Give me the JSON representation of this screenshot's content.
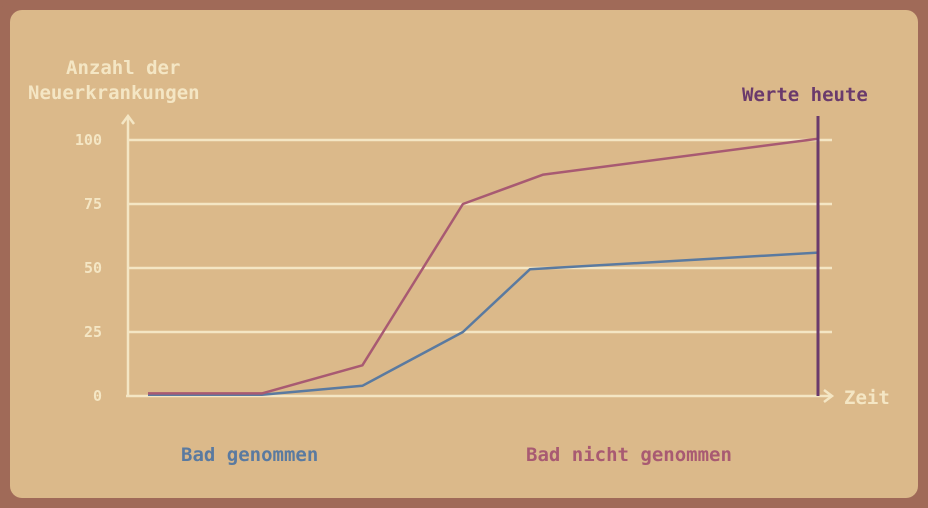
{
  "chart_data": {
    "type": "line",
    "ylabel": [
      "Anzahl der",
      "Neuerkrankungen"
    ],
    "xlabel": "Zeit",
    "yticks": [
      0,
      25,
      50,
      75,
      100
    ],
    "ylim": [
      0,
      100
    ],
    "xlim": [
      0,
      100
    ],
    "grid": true,
    "marker_label": "Werte heute",
    "marker_x": 100,
    "series": [
      {
        "name": "Bad genommen",
        "color": "#5a7aa0",
        "points": [
          [
            0,
            0.5
          ],
          [
            17,
            0.5
          ],
          [
            32,
            4
          ],
          [
            47,
            25
          ],
          [
            57,
            49.5
          ],
          [
            100,
            56
          ]
        ]
      },
      {
        "name": "Bad nicht genommen",
        "color": "#a85a72",
        "points": [
          [
            0,
            1
          ],
          [
            17,
            1
          ],
          [
            32,
            12
          ],
          [
            47,
            75
          ],
          [
            59,
            86.5
          ],
          [
            100,
            100.5
          ]
        ]
      }
    ],
    "colors": {
      "axis": "#f4e6c4",
      "tick_label": "#f4e6c4",
      "marker": "#6a3a6c"
    }
  }
}
